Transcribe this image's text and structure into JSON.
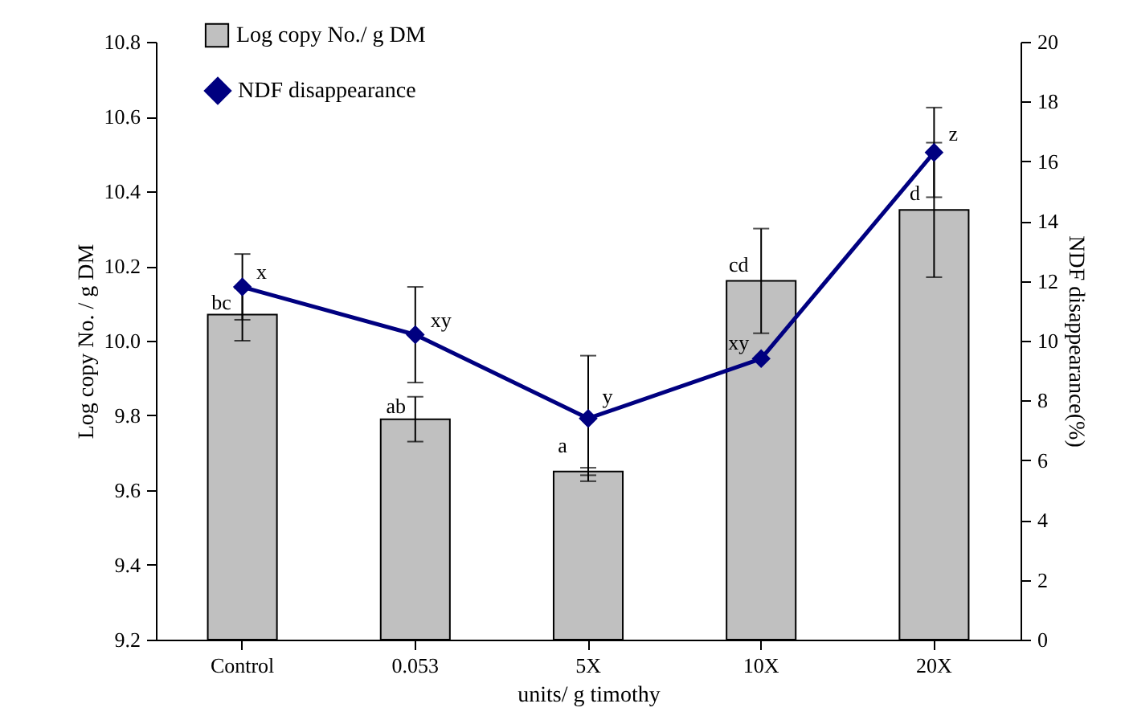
{
  "chart_data": {
    "type": "bar",
    "xlabel": "units/ g timothy",
    "ylabel": "Log copy No. / g DM",
    "y2label": "NDF disappearance(%)",
    "categories": [
      "Control",
      "0.053",
      "5X",
      "10X",
      "20X"
    ],
    "series": [
      {
        "name": "Log copy No./ g DM",
        "color": "#c0c0c0",
        "values": [
          10.07,
          9.79,
          9.65,
          10.16,
          10.35
        ],
        "errors": [
          0.07,
          0.06,
          0.01,
          0.14,
          0.18
        ]
      },
      {
        "name": "NDF disappearance",
        "type": "line",
        "axis": "y2",
        "color": "#000080",
        "values": [
          11.8,
          10.2,
          7.4,
          9.4,
          16.3
        ],
        "errors": [
          1.1,
          1.6,
          2.1,
          null,
          1.5
        ]
      }
    ],
    "ylim": [
      9.2,
      10.8
    ],
    "yticks": [
      9.2,
      9.4,
      9.6,
      9.8,
      {
        "value": 10,
        "label": "10.0"
      },
      10.2,
      10.4,
      10.6,
      10.8
    ],
    "y2lim": [
      0,
      20
    ],
    "y2ticks": [
      0,
      2,
      4,
      6,
      8,
      10,
      12,
      14,
      16,
      18,
      20
    ],
    "marker": "diamond",
    "line_style": "solid",
    "grid": false,
    "legend": "top left",
    "annotations": [
      {
        "text": "bc",
        "x": "Control",
        "y": 10.07
      },
      {
        "text": "x",
        "x": "Control",
        "y": 10.14
      },
      {
        "text": "ab",
        "x": "0.053",
        "y": 9.79
      },
      {
        "text": "xy",
        "x": "0.053",
        "y": 10.02
      },
      {
        "text": "a",
        "x": "5X",
        "y": 9.65
      },
      {
        "text": "y",
        "x": "5X",
        "y": 9.79
      },
      {
        "text": "cd",
        "x": "10X",
        "y": 10.16
      },
      {
        "text": "xy",
        "x": "10X",
        "y": 9.96
      },
      {
        "text": "d",
        "x": "20X",
        "y": 10.35
      },
      {
        "text": "z",
        "x": "20X",
        "y": 10.51
      }
    ]
  }
}
